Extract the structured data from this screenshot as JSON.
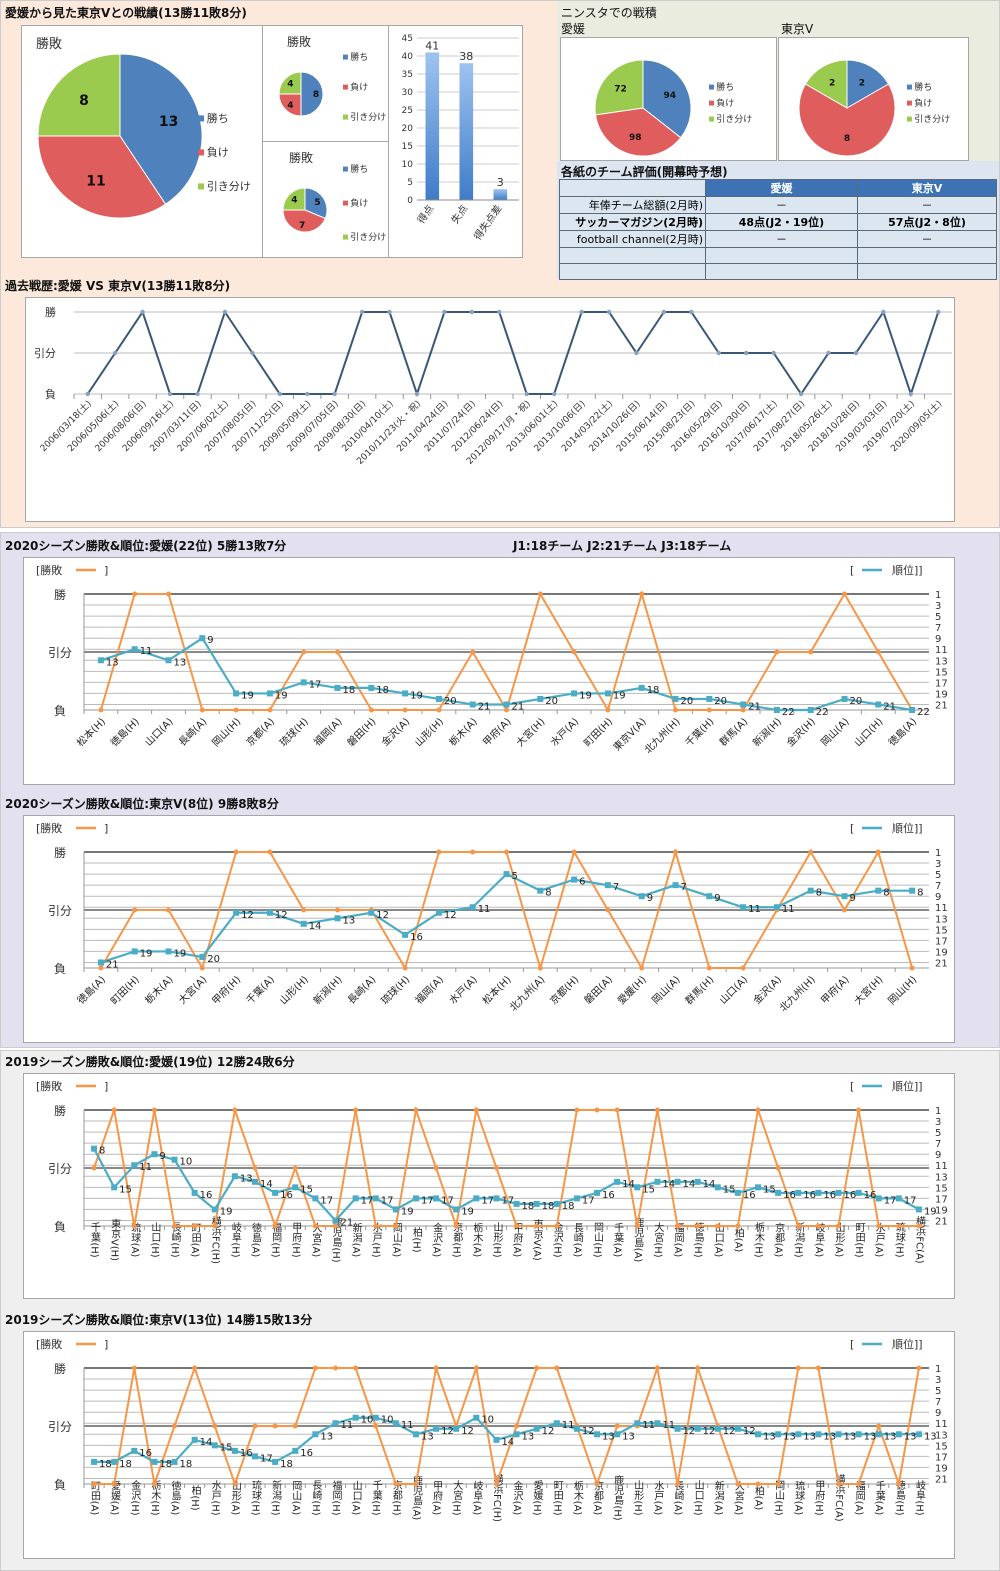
{
  "sections": {
    "h2h_title": "愛媛から見た東京Vとの戦績(13勝11敗8分)",
    "ninsta_title": "ニンスタでの戦積",
    "ninsta_ehime": "愛媛",
    "ninsta_tokyo": "東京V",
    "eval_title": "各紙のチーム評価(開幕時予想)",
    "history_title": "過去戦歴:愛媛 VS 東京V(13勝11敗8分)",
    "ehime2020_title": "2020シーズン勝敗&順位:愛媛(22位) 5勝13敗7分",
    "league_info": "J1:18チーム J2:21チーム J3:18チーム",
    "tokyo2020_title": "2020シーズン勝敗&順位:東京V(8位) 9勝8敗8分",
    "ehime2019_title": "2019シーズン勝敗&順位:愛媛(19位) 12勝24敗6分",
    "tokyo2019_title": "2019シーズン勝敗&順位:東京V(13位) 14勝15敗13分"
  },
  "colors": {
    "win": "#4f81bd",
    "loss": "#e05d5d",
    "draw": "#9bcb4e",
    "result_line": "#f79646",
    "rank_line": "#4bacc6",
    "history_line": "#3b5778"
  },
  "eval_table": {
    "headers": [
      "",
      "愛媛",
      "東京V"
    ],
    "rows": [
      [
        "年俸チーム総額(2月時)",
        "－",
        "－"
      ],
      [
        "サッカーマガジン(2月時)",
        "48点(J2・19位)",
        "57点(J2・8位)"
      ],
      [
        "football channel(2月時)",
        "－",
        "－"
      ],
      [
        "",
        "",
        ""
      ],
      [
        "",
        "",
        ""
      ]
    ]
  },
  "chart_data": [
    {
      "id": "pie-total",
      "type": "pie",
      "title": "勝敗",
      "categories": [
        "勝ち",
        "負け",
        "引き分け"
      ],
      "values": [
        13,
        11,
        8
      ]
    },
    {
      "id": "pie-home",
      "type": "pie",
      "title": "勝敗",
      "categories": [
        "勝ち",
        "負け",
        "引き分け"
      ],
      "values": [
        8,
        4,
        4
      ]
    },
    {
      "id": "pie-away",
      "type": "pie",
      "title": "勝敗",
      "categories": [
        "勝ち",
        "負け",
        "引き分け"
      ],
      "values": [
        5,
        7,
        4
      ]
    },
    {
      "id": "bar-goals",
      "type": "bar",
      "categories": [
        "得点",
        "失点",
        "得失点差"
      ],
      "values": [
        41,
        38,
        3
      ],
      "ylim": [
        0,
        45
      ],
      "yticks": [
        0,
        5,
        10,
        15,
        20,
        25,
        30,
        35,
        40,
        45
      ]
    },
    {
      "id": "pie-ninsta-ehime",
      "type": "pie",
      "title": "愛媛",
      "categories": [
        "勝ち",
        "負け",
        "引き分け"
      ],
      "values": [
        94,
        98,
        72
      ]
    },
    {
      "id": "pie-ninsta-tokyo",
      "type": "pie",
      "title": "東京V",
      "categories": [
        "勝ち",
        "負け",
        "引き分け"
      ],
      "values": [
        2,
        8,
        2
      ]
    },
    {
      "id": "history",
      "type": "line",
      "title": "過去戦歴:愛媛 VS 東京V(13勝11敗8分)",
      "ylabels": [
        "勝",
        "引分",
        "負"
      ],
      "x": [
        "2006/03/18(土)",
        "2006/05/06(土)",
        "2006/08/06(日)",
        "2006/09/16(土)",
        "2007/03/11(日)",
        "2007/06/02(土)",
        "2007/08/05(日)",
        "2007/11/25(日)",
        "2009/05/09(土)",
        "2009/07/05(日)",
        "2009/08/30(日)",
        "2010/04/10(土)",
        "2010/11/23(火・祝)",
        "2011/04/24(日)",
        "2011/07/24(日)",
        "2012/06/24(日)",
        "2012/09/17(月・祝)",
        "2013/06/01(土)",
        "2013/10/06(日)",
        "2014/03/22(土)",
        "2014/10/26(日)",
        "2015/06/14(日)",
        "2015/08/23(日)",
        "2016/05/29(日)",
        "2016/10/30(日)",
        "2017/06/17(土)",
        "2017/08/27(日)",
        "2018/05/26(土)",
        "2018/10/28(日)",
        "2019/03/03(日)",
        "2019/07/20(土)",
        "2020/09/05(土)"
      ],
      "results": [
        "L",
        "D",
        "W",
        "L",
        "L",
        "W",
        "D",
        "L",
        "L",
        "L",
        "W",
        "W",
        "L",
        "W",
        "W",
        "W",
        "L",
        "L",
        "W",
        "W",
        "D",
        "W",
        "W",
        "D",
        "D",
        "D",
        "L",
        "D",
        "D",
        "W",
        "L",
        "W"
      ]
    },
    {
      "id": "ehime2020",
      "type": "line",
      "legend_result": "[勝敗",
      "legend_rank": "[ 順位]",
      "ylabels": [
        "勝",
        "引分",
        "負"
      ],
      "rank_ticks": [
        1,
        3,
        5,
        7,
        9,
        11,
        13,
        15,
        17,
        19,
        21
      ],
      "rank_max": 22,
      "x": [
        "松本(H)",
        "徳島(H)",
        "山口(A)",
        "長崎(A)",
        "岡山(H)",
        "京都(A)",
        "琉球(H)",
        "福岡(A)",
        "磐田(H)",
        "金沢(A)",
        "山形(H)",
        "栃木(A)",
        "甲府(A)",
        "大宮(H)",
        "水戸(A)",
        "町田(H)",
        "東京V(A)",
        "北九州(H)",
        "千葉(H)",
        "群馬(A)",
        "新潟(H)",
        "金沢(H)",
        "岡山(A)",
        "山口(H)",
        "徳島(A)"
      ],
      "results": [
        "L",
        "W",
        "W",
        "L",
        "L",
        "L",
        "D",
        "D",
        "L",
        "L",
        "L",
        "D",
        "L",
        "W",
        "D",
        "L",
        "W",
        "L",
        "L",
        "L",
        "D",
        "D",
        "W",
        "D",
        "L"
      ],
      "ranks": [
        13,
        11,
        13,
        9,
        19,
        19,
        17,
        18,
        18,
        19,
        20,
        21,
        21,
        20,
        19,
        19,
        18,
        20,
        20,
        21,
        22,
        22,
        20,
        21,
        22
      ]
    },
    {
      "id": "tokyo2020",
      "type": "line",
      "legend_result": "[勝敗",
      "legend_rank": "[ 順位]",
      "ylabels": [
        "勝",
        "引分",
        "負"
      ],
      "rank_ticks": [
        1,
        3,
        5,
        7,
        9,
        11,
        13,
        15,
        17,
        19,
        21
      ],
      "rank_max": 22,
      "x": [
        "徳島(A)",
        "町田(H)",
        "栃木(A)",
        "大宮(A)",
        "甲府(H)",
        "千葉(A)",
        "山形(H)",
        "新潟(H)",
        "長崎(A)",
        "琉球(H)",
        "福岡(A)",
        "水戸(A)",
        "松本(H)",
        "北九州(A)",
        "京都(H)",
        "磐田(A)",
        "愛媛(H)",
        "岡山(A)",
        "群馬(H)",
        "山口(A)",
        "金沢(A)",
        "北九州(H)",
        "甲府(A)",
        "大宮(H)",
        "岡山(H)"
      ],
      "results": [
        "L",
        "D",
        "D",
        "L",
        "W",
        "W",
        "D",
        "D",
        "D",
        "L",
        "W",
        "W",
        "W",
        "L",
        "W",
        "D",
        "L",
        "W",
        "L",
        "L",
        "D",
        "W",
        "D",
        "W",
        "L"
      ],
      "ranks": [
        21,
        19,
        19,
        20,
        12,
        12,
        14,
        13,
        12,
        16,
        12,
        11,
        5,
        8,
        6,
        7,
        9,
        7,
        9,
        11,
        11,
        8,
        9,
        8,
        8
      ]
    },
    {
      "id": "ehime2019",
      "type": "line",
      "legend_result": "[勝敗",
      "legend_rank": "[ 順位]",
      "ylabels": [
        "勝",
        "引分",
        "負"
      ],
      "rank_ticks": [
        1,
        3,
        5,
        7,
        9,
        11,
        13,
        15,
        17,
        19,
        21
      ],
      "rank_max": 22,
      "x": [
        "千葉(H)",
        "東京V(H)",
        "琉球(A)",
        "山口(H)",
        "長崎(H)",
        "町田(A)",
        "横浜FC(H)",
        "岐阜(H)",
        "徳島(A)",
        "福岡(H)",
        "甲府(H)",
        "大宮(A)",
        "鹿児島(H)",
        "新潟(A)",
        "水戸(H)",
        "岡山(A)",
        "柏(H)",
        "金沢(A)",
        "京都(H)",
        "栃木(A)",
        "山形(H)",
        "甲府(A)",
        "東京V(A)",
        "金沢(H)",
        "長崎(A)",
        "岡山(H)",
        "千葉(A)",
        "鹿児島(A)",
        "大宮(H)",
        "福岡(A)",
        "徳島(H)",
        "山口(A)",
        "柏(A)",
        "栃木(H)",
        "京都(A)",
        "新潟(H)",
        "岐阜(A)",
        "山形(A)",
        "町田(H)",
        "水戸(A)",
        "琉球(H)",
        "横浜FC(A)"
      ],
      "results": [
        "D",
        "W",
        "L",
        "W",
        "L",
        "L",
        "L",
        "W",
        "D",
        "L",
        "D",
        "L",
        "L",
        "W",
        "L",
        "L",
        "W",
        "D",
        "L",
        "W",
        "D",
        "L",
        "L",
        "L",
        "W",
        "W",
        "W",
        "L",
        "W",
        "L",
        "L",
        "L",
        "L",
        "W",
        "D",
        "L",
        "L",
        "L",
        "W",
        "L",
        "L",
        "L"
      ],
      "ranks": [
        8,
        15,
        11,
        9,
        10,
        16,
        19,
        13,
        14,
        16,
        15,
        17,
        21,
        17,
        17,
        19,
        17,
        17,
        19,
        17,
        17,
        18,
        18,
        18,
        17,
        16,
        14,
        15,
        14,
        14,
        14,
        15,
        16,
        15,
        16,
        16,
        16,
        16,
        16,
        17,
        17,
        19
      ]
    },
    {
      "id": "tokyo2019",
      "type": "line",
      "legend_result": "[勝敗",
      "legend_rank": "[ 順位]",
      "ylabels": [
        "勝",
        "引分",
        "負"
      ],
      "rank_ticks": [
        1,
        3,
        5,
        7,
        9,
        11,
        13,
        15,
        17,
        19,
        21
      ],
      "rank_max": 22,
      "x": [
        "町田(A)",
        "愛媛(A)",
        "金沢(H)",
        "栃木(H)",
        "徳島(A)",
        "柏(H)",
        "水戸(H)",
        "山形(A)",
        "琉球(H)",
        "新潟(H)",
        "岡山(A)",
        "長崎(H)",
        "福岡(H)",
        "山口(A)",
        "千葉(H)",
        "京都(H)",
        "鹿児島(A)",
        "甲府(A)",
        "大宮(H)",
        "岐阜(A)",
        "横浜FC(H)",
        "金沢(A)",
        "愛媛(H)",
        "町田(H)",
        "栃木(A)",
        "京都(A)",
        "鹿児島(H)",
        "山形(H)",
        "水戸(A)",
        "長崎(A)",
        "山口(H)",
        "新潟(A)",
        "大宮(A)",
        "柏(A)",
        "岡山(H)",
        "琉球(A)",
        "甲府(H)",
        "横浜FC(A)",
        "福岡(A)",
        "千葉(A)",
        "徳島(H)",
        "岐阜(H)"
      ],
      "results": [
        "L",
        "L",
        "W",
        "L",
        "D",
        "W",
        "D",
        "L",
        "D",
        "D",
        "D",
        "W",
        "W",
        "W",
        "D",
        "L",
        "L",
        "W",
        "D",
        "W",
        "L",
        "D",
        "W",
        "W",
        "D",
        "L",
        "D",
        "D",
        "W",
        "L",
        "W",
        "D",
        "L",
        "L",
        "L",
        "W",
        "W",
        "L",
        "L",
        "D",
        "L",
        "W"
      ],
      "ranks": [
        18,
        18,
        16,
        18,
        18,
        14,
        15,
        16,
        17,
        18,
        16,
        13,
        11,
        10,
        10,
        11,
        13,
        12,
        12,
        10,
        14,
        13,
        12,
        11,
        12,
        13,
        13,
        11,
        11,
        12,
        12,
        12,
        12,
        13,
        13,
        13,
        13,
        13,
        13,
        13,
        13,
        13
      ]
    }
  ]
}
